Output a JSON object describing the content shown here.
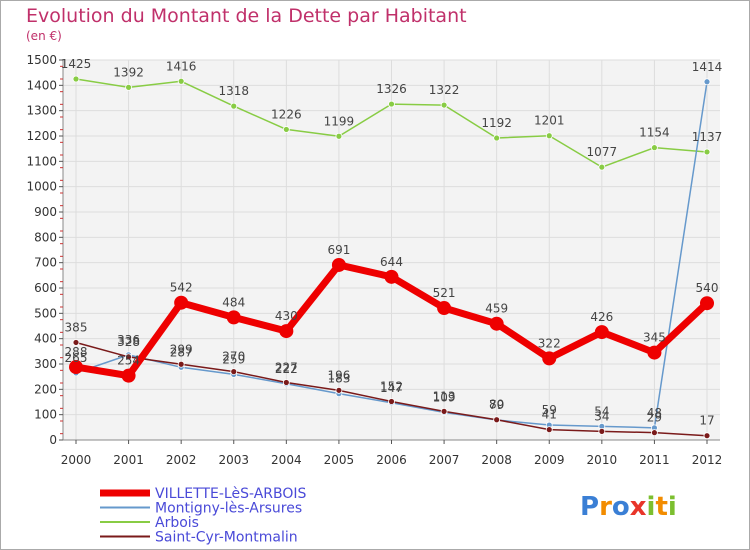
{
  "chart_data": {
    "type": "line",
    "title": "Evolution du Montant de la Dette par Habitant",
    "subtitle": "(en €)",
    "xlabel": "",
    "ylabel": "",
    "ylim": [
      0,
      1500
    ],
    "yticks": [
      0,
      100,
      200,
      300,
      400,
      500,
      600,
      700,
      800,
      900,
      1000,
      1100,
      1200,
      1300,
      1400,
      1500
    ],
    "x": [
      "2000",
      "2001",
      "2002",
      "2003",
      "2004",
      "2005",
      "2006",
      "2007",
      "2008",
      "2009",
      "2010",
      "2011",
      "2012"
    ],
    "grid": true,
    "legend_position": "bottom-left",
    "series": [
      {
        "name": "VILLETTE-LèS-ARBOIS",
        "color": "#ee0000",
        "values": [
          288,
          254,
          542,
          484,
          430,
          691,
          644,
          521,
          459,
          322,
          426,
          345,
          540
        ],
        "labels": [
          "288",
          "254",
          "542",
          "484",
          "430",
          "691",
          "644",
          "521",
          "459",
          "322",
          "426",
          "345",
          "540"
        ]
      },
      {
        "name": "Montigny-lès-Arsures",
        "color": "#6699cc",
        "values": [
          265,
          336,
          287,
          259,
          222,
          183,
          147,
          109,
          79,
          59,
          54,
          48,
          1414
        ],
        "labels": [
          "265",
          "336",
          "287",
          "259",
          "222",
          "183",
          "147",
          "109",
          "79",
          "59",
          "54",
          "48",
          "1414"
        ]
      },
      {
        "name": "Arbois",
        "color": "#88cc44",
        "values": [
          1425,
          1392,
          1416,
          1318,
          1226,
          1199,
          1326,
          1322,
          1192,
          1201,
          1077,
          1154,
          1137
        ],
        "labels": [
          "1425",
          "1392",
          "1416",
          "1318",
          "1226",
          "1199",
          "1326",
          "1322",
          "1192",
          "1201",
          "1077",
          "1154",
          "1137"
        ]
      },
      {
        "name": "Saint-Cyr-Montmalin",
        "color": "#7a1a1a",
        "values": [
          385,
          328,
          299,
          270,
          227,
          196,
          152,
          113,
          80,
          41,
          34,
          29,
          17
        ],
        "labels": [
          "385",
          "328",
          "299",
          "270",
          "227",
          "196",
          "152",
          "113",
          "80",
          "41",
          "34",
          "29",
          "17"
        ]
      }
    ]
  },
  "logo": {
    "text": "Proxiti"
  }
}
